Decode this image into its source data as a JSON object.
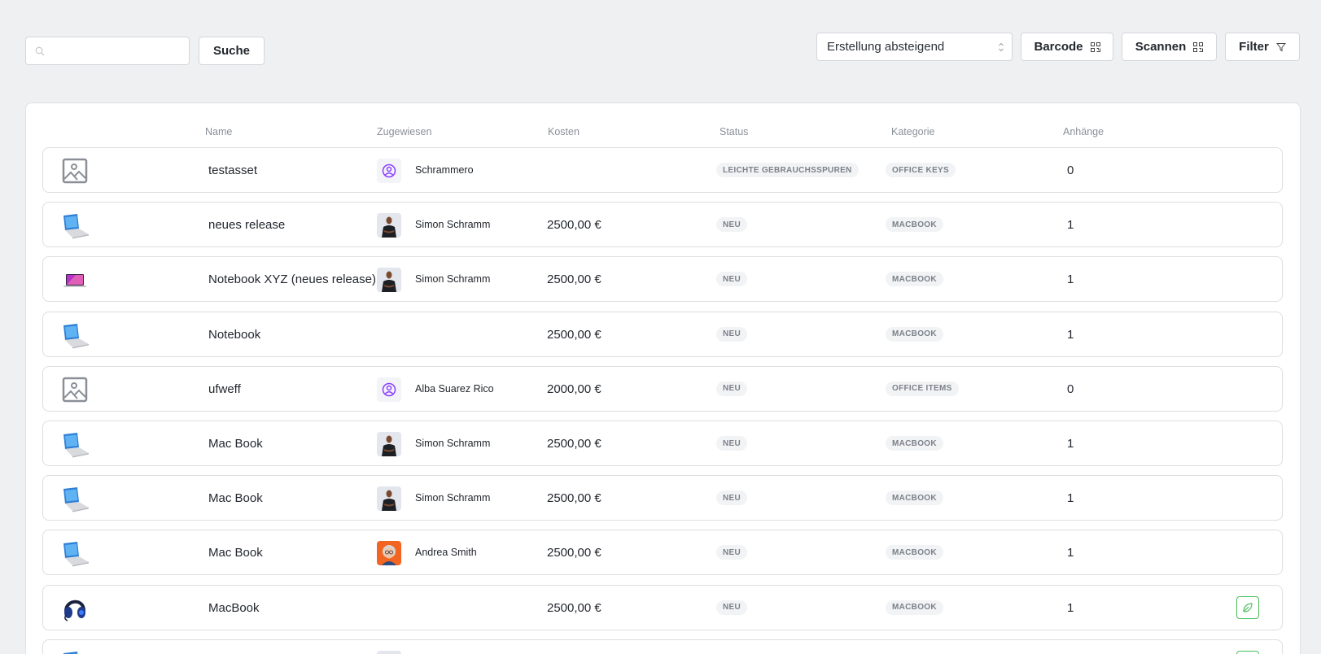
{
  "toolbar": {
    "search_placeholder": "",
    "search_value": "",
    "search_button": "Suche",
    "sort_value": "Erstellung absteigend",
    "barcode_button": "Barcode",
    "scan_button": "Scannen",
    "filter_button": "Filter"
  },
  "table": {
    "columns": [
      "Name",
      "Zugewiesen",
      "Kosten",
      "Status",
      "Kategorie",
      "Anhänge"
    ],
    "rows": [
      {
        "thumb": "image-placeholder",
        "name": "testasset",
        "avatar": "user-icon",
        "assignee": "Schrammero",
        "cost": "",
        "status": "LEICHTE GEBRAUCHSSPUREN",
        "category": "OFFICE KEYS",
        "attachments": "0",
        "leaf": false
      },
      {
        "thumb": "laptop-silver",
        "name": "neues release",
        "avatar": "photo-man",
        "assignee": "Simon Schramm",
        "cost": "2500,00 €",
        "status": "NEU",
        "category": "MACBOOK",
        "attachments": "1",
        "leaf": false
      },
      {
        "thumb": "laptop-purple",
        "name": "Notebook XYZ (neues release)",
        "avatar": "photo-man",
        "assignee": "Simon Schramm",
        "cost": "2500,00 €",
        "status": "NEU",
        "category": "MACBOOK",
        "attachments": "1",
        "leaf": false
      },
      {
        "thumb": "laptop-silver",
        "name": "Notebook",
        "avatar": "",
        "assignee": "",
        "cost": "2500,00 €",
        "status": "NEU",
        "category": "MACBOOK",
        "attachments": "1",
        "leaf": false
      },
      {
        "thumb": "image-placeholder",
        "name": "ufweff",
        "avatar": "user-icon",
        "assignee": "Alba Suarez Rico",
        "cost": "2000,00 €",
        "status": "NEU",
        "category": "OFFICE ITEMS",
        "attachments": "0",
        "leaf": false
      },
      {
        "thumb": "laptop-silver",
        "name": "Mac Book",
        "avatar": "photo-man",
        "assignee": "Simon Schramm",
        "cost": "2500,00 €",
        "status": "NEU",
        "category": "MACBOOK",
        "attachments": "1",
        "leaf": false
      },
      {
        "thumb": "laptop-silver",
        "name": "Mac Book",
        "avatar": "photo-man",
        "assignee": "Simon Schramm",
        "cost": "2500,00 €",
        "status": "NEU",
        "category": "MACBOOK",
        "attachments": "1",
        "leaf": false
      },
      {
        "thumb": "laptop-silver",
        "name": "Mac Book",
        "avatar": "photo-woman",
        "assignee": "Andrea Smith",
        "cost": "2500,00 €",
        "status": "NEU",
        "category": "MACBOOK",
        "attachments": "1",
        "leaf": false
      },
      {
        "thumb": "headset",
        "name": "MacBook",
        "avatar": "",
        "assignee": "",
        "cost": "2500,00 €",
        "status": "NEU",
        "category": "MACBOOK",
        "attachments": "1",
        "leaf": true
      },
      {
        "thumb": "laptop-silver",
        "name": "",
        "avatar": "photo-man",
        "assignee": "",
        "cost": "",
        "status": "",
        "category": "",
        "attachments": "",
        "leaf": true
      }
    ]
  },
  "colors": {
    "background": "#eff0f2",
    "accent_purple": "#8b3dff",
    "leaf_green": "#4cbf5e",
    "badge_bg": "#f2f3f5",
    "badge_text": "#7b818b"
  }
}
